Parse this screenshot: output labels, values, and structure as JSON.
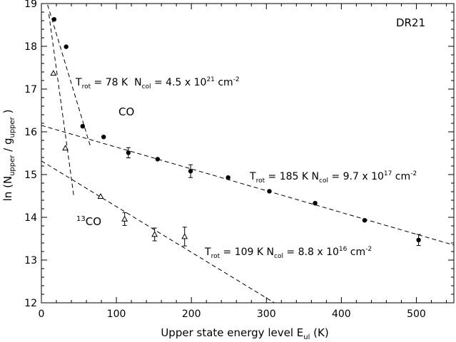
{
  "chart_data": {
    "type": "scatter",
    "title": "",
    "panel_label": "DR21",
    "xlabel": {
      "main": "Upper state energy level E",
      "sub": "ul",
      "tail": " (K)"
    },
    "ylabel": {
      "a": "ln (N",
      "a_sub": "upper",
      "b": " / g",
      "b_sub": "upper",
      "c": " )"
    },
    "xlim": [
      0,
      550
    ],
    "ylim": [
      12,
      19
    ],
    "x_ticks": [
      0,
      100,
      200,
      300,
      400,
      500
    ],
    "y_ticks": [
      12,
      13,
      14,
      15,
      16,
      17,
      18,
      19
    ],
    "series": [
      {
        "name": "CO",
        "marker": "filled-circle",
        "x": [
          17,
          33,
          55,
          83,
          116,
          155,
          199,
          249,
          304,
          365,
          431,
          503
        ],
        "y": [
          18.63,
          17.99,
          16.13,
          15.88,
          15.51,
          15.36,
          15.08,
          14.93,
          14.61,
          14.33,
          13.93,
          13.47
        ],
        "err": [
          0,
          0,
          0,
          0,
          0.12,
          0,
          0.15,
          0,
          0,
          0,
          0,
          0.13
        ]
      },
      {
        "name": "13CO",
        "marker": "open-triangle",
        "x": [
          16,
          32,
          79,
          111,
          151,
          191
        ],
        "y": [
          17.37,
          15.62,
          14.49,
          13.96,
          13.6,
          13.55
        ],
        "err": [
          0,
          0,
          0,
          0.15,
          0.15,
          0.22
        ]
      }
    ],
    "fits": [
      {
        "id": "co-cold",
        "x": [
          0,
          66
        ],
        "y": [
          19.45,
          15.62
        ]
      },
      {
        "id": "co-warm",
        "x": [
          0,
          550
        ],
        "y": [
          16.15,
          13.35
        ]
      },
      {
        "id": "13co-cold",
        "x": [
          10,
          43
        ],
        "y": [
          18.75,
          14.52
        ]
      },
      {
        "id": "13co-warm",
        "x": [
          0,
          320
        ],
        "y": [
          15.32,
          11.9
        ]
      }
    ],
    "labels": {
      "co": "CO",
      "13co_sup": "13",
      "13co": "CO",
      "fit1": {
        "t": "T",
        "t_sub": "rot",
        "t_val": " = 78 K  N",
        "n_sub": "col",
        "n_val": " = 4.5 x 10",
        "exp": "21",
        "unit": " cm",
        "unit_exp": "-2"
      },
      "fit2": {
        "t": "T",
        "t_sub": "rot",
        "t_val": " = 185 K  N",
        "n_sub": "col",
        "n_val": " = 9.7 x 10",
        "exp": "17",
        "unit": " cm",
        "unit_exp": "-2"
      },
      "fit3": {
        "t": "T",
        "t_sub": "rot",
        "t_val": " = 109 K  N",
        "n_sub": "col",
        "n_val": " = 8.8 x 10",
        "exp": "16",
        "unit": " cm",
        "unit_exp": "-2"
      }
    }
  }
}
